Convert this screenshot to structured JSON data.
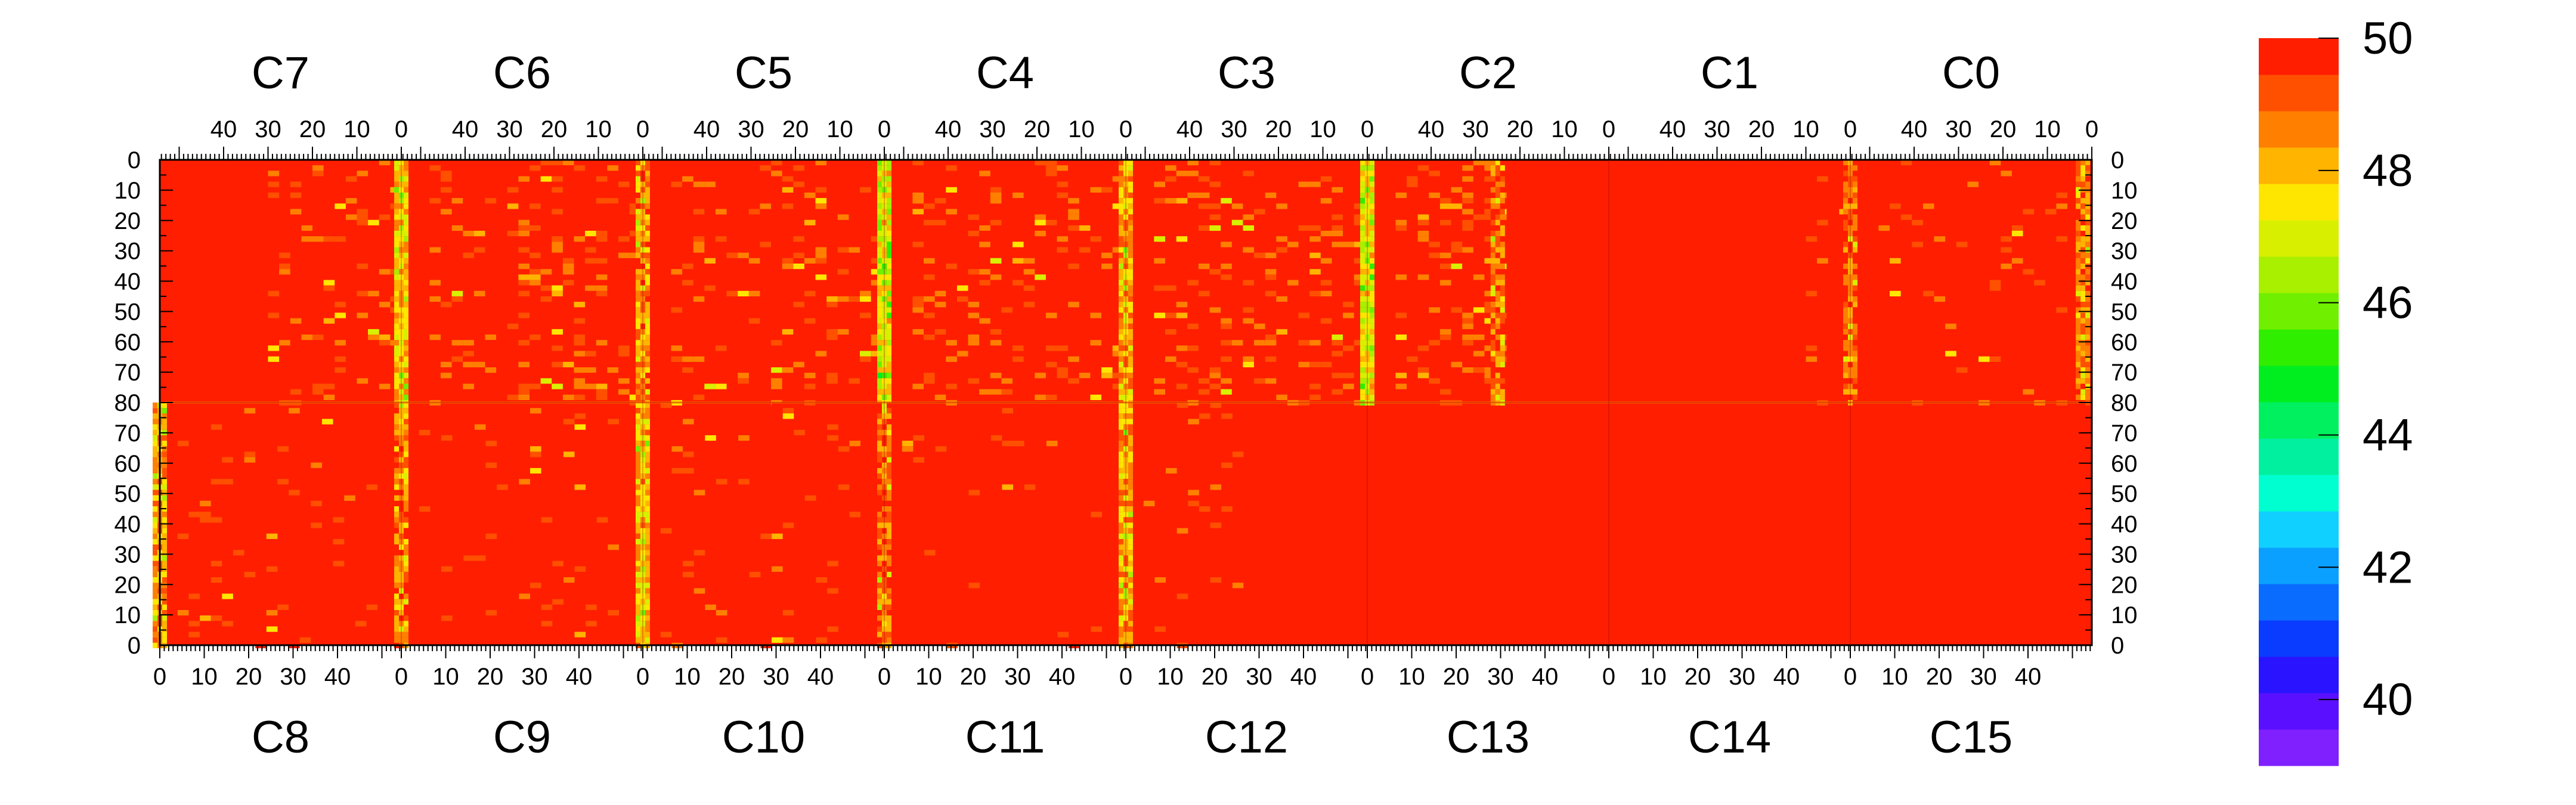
{
  "chart_data": {
    "type": "heatmap",
    "top_modules": [
      "C7",
      "C6",
      "C5",
      "C4",
      "C3",
      "C2",
      "C1",
      "C0"
    ],
    "bottom_modules": [
      "C8",
      "C9",
      "C10",
      "C11",
      "C12",
      "C13",
      "C14",
      "C15"
    ],
    "top_x_tick_labels": [
      "40",
      "30",
      "20",
      "10",
      "0"
    ],
    "bottom_x_tick_labels": [
      "0",
      "10",
      "20",
      "30",
      "40"
    ],
    "left_y_tick_labels": [
      "0",
      "10",
      "20",
      "30",
      "40",
      "50",
      "60",
      "70",
      "80",
      "70",
      "60",
      "50",
      "40",
      "30",
      "20",
      "10",
      "0"
    ],
    "right_y_tick_labels": [
      "0",
      "10",
      "20",
      "30",
      "40",
      "50",
      "60",
      "70",
      "80",
      "70",
      "60",
      "50",
      "40",
      "30",
      "20",
      "10",
      "0"
    ],
    "x_per_module": [
      0,
      54
    ],
    "y_per_half": [
      0,
      80
    ],
    "z_range": [
      39,
      50
    ],
    "colorbar_ticks": [
      "50",
      "48",
      "46",
      "44",
      "42",
      "40"
    ],
    "colorbar_tick_values": [
      50,
      48,
      46,
      44,
      42,
      40
    ],
    "colorbar_colors": [
      "#8020ff",
      "#5a10ff",
      "#2a14ff",
      "#0a3cff",
      "#0a6cff",
      "#0aa0ff",
      "#10d0ff",
      "#00ffd0",
      "#00f0a0",
      "#00f060",
      "#00ee20",
      "#30ee00",
      "#70f000",
      "#a8f000",
      "#d8f000",
      "#ffe600",
      "#ffb400",
      "#ff8000",
      "#ff5000",
      "#ff1e00"
    ],
    "background_color": "#ff1e00",
    "hot_columns": [
      {
        "module": "C7",
        "half": "top",
        "x": 0,
        "level": 47.5
      },
      {
        "module": "C7",
        "half": "bottom",
        "x": 0,
        "level": 48.0
      },
      {
        "module": "C6",
        "half": "top",
        "x": 0,
        "level": 48.3
      },
      {
        "module": "C6",
        "half": "bottom",
        "x": 0,
        "level": 48.5
      },
      {
        "module": "C5",
        "half": "top",
        "x": 0,
        "level": 47.0
      },
      {
        "module": "C5",
        "half": "bottom",
        "x": 0,
        "level": 47.6
      },
      {
        "module": "C4",
        "half": "top",
        "x": 0,
        "level": 48.0
      },
      {
        "module": "C4",
        "half": "bottom",
        "x": 0,
        "level": 48.6
      },
      {
        "module": "C3",
        "half": "top",
        "x": 0,
        "level": 47.0
      },
      {
        "module": "C3",
        "half": "bottom",
        "x": 0,
        "level": 48.0
      },
      {
        "module": "C2",
        "half": "top",
        "x": 25,
        "level": 48.6
      },
      {
        "module": "C1",
        "half": "top",
        "x": 0,
        "level": 48.8
      },
      {
        "module": "C0",
        "half": "top",
        "x": 2,
        "level": 48.4
      }
    ],
    "noisy_regions": [
      {
        "module": "C7",
        "half": "top",
        "x": [
          1,
          30
        ],
        "level": 49.0
      },
      {
        "module": "C6",
        "half": "top",
        "x": [
          1,
          48
        ],
        "level": 49.0
      },
      {
        "module": "C5",
        "half": "top",
        "x": [
          1,
          48
        ],
        "level": 49.0
      },
      {
        "module": "C4",
        "half": "top",
        "x": [
          1,
          48
        ],
        "level": 49.0
      },
      {
        "module": "C3",
        "half": "top",
        "x": [
          1,
          48
        ],
        "level": 49.0
      },
      {
        "module": "C2",
        "half": "top",
        "x": [
          24,
          48
        ],
        "level": 48.8
      },
      {
        "module": "C1",
        "half": "top",
        "x": [
          1,
          10
        ],
        "level": 49.5
      },
      {
        "module": "C0",
        "half": "top",
        "x": [
          1,
          48
        ],
        "level": 49.3
      },
      {
        "module": "C8",
        "half": "bottom",
        "x": [
          4,
          48
        ],
        "level": 49.3
      },
      {
        "module": "C9",
        "half": "bottom",
        "x": [
          4,
          48
        ],
        "level": 49.3
      },
      {
        "module": "C10",
        "half": "bottom",
        "x": [
          4,
          48
        ],
        "level": 49.3
      },
      {
        "module": "C11",
        "half": "bottom",
        "x": [
          4,
          48
        ],
        "level": 49.5
      },
      {
        "module": "C12",
        "half": "bottom",
        "x": [
          4,
          28
        ],
        "level": 49.3
      }
    ]
  }
}
